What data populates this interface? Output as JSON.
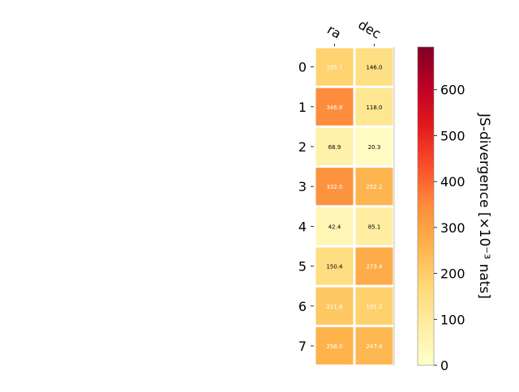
{
  "chart_data": {
    "type": "heatmap",
    "columns": [
      "ra",
      "dec"
    ],
    "rows": [
      "0",
      "1",
      "2",
      "3",
      "4",
      "5",
      "6",
      "7"
    ],
    "values": [
      [
        185.7,
        146.0
      ],
      [
        346.8,
        118.0
      ],
      [
        68.9,
        20.3
      ],
      [
        332.0,
        252.2
      ],
      [
        42.4,
        85.1
      ],
      [
        150.4,
        273.4
      ],
      [
        211.8,
        191.2
      ],
      [
        258.0,
        247.4
      ]
    ],
    "value_labels": [
      [
        "185.7",
        "146.0"
      ],
      [
        "346.8",
        "118.0"
      ],
      [
        "68.9",
        "20.3"
      ],
      [
        "332.0",
        "252.2"
      ],
      [
        "42.4",
        "85.1"
      ],
      [
        "150.4",
        "273.4"
      ],
      [
        "211.8",
        "191.2"
      ],
      [
        "258.0",
        "247.4"
      ]
    ],
    "colorbar": {
      "label": "JS-divergence [×10⁻³ nats]",
      "range": [
        0,
        693
      ],
      "ticks": [
        "0",
        "100",
        "200",
        "300",
        "400",
        "500",
        "600"
      ],
      "tick_values": [
        0,
        100,
        200,
        300,
        400,
        500,
        600
      ],
      "colormap": "YlOrRd"
    },
    "colors": {
      "cell_border": "#ffffff",
      "text_light": "#ffffff",
      "text_dark": "#000000"
    }
  }
}
